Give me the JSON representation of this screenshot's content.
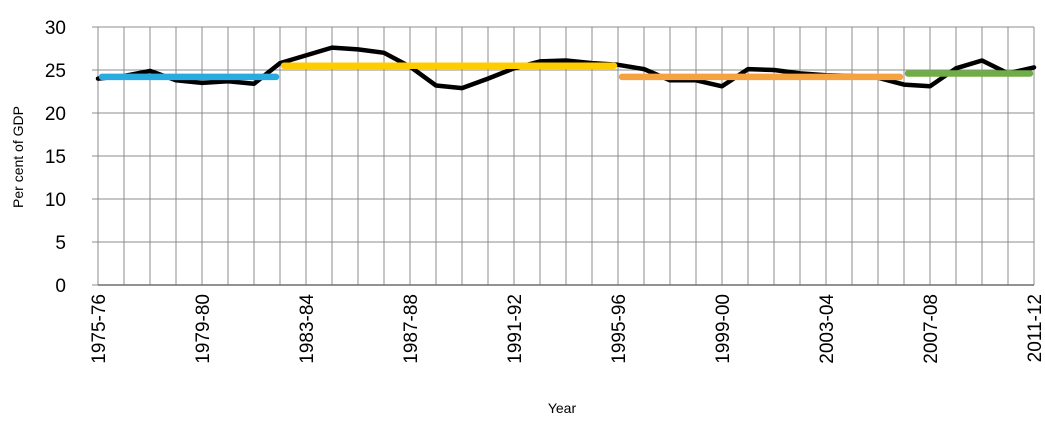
{
  "chart_data": {
    "type": "line",
    "title": "",
    "xlabel": "Year",
    "ylabel": "Per cent of GDP",
    "ylim": [
      0,
      30
    ],
    "yticks": [
      0,
      5,
      10,
      15,
      20,
      25,
      30
    ],
    "grid": true,
    "x": [
      "1975-76",
      "1976-77",
      "1977-78",
      "1978-79",
      "1979-80",
      "1980-81",
      "1981-82",
      "1982-83",
      "1983-84",
      "1984-85",
      "1985-86",
      "1986-87",
      "1987-88",
      "1988-89",
      "1989-90",
      "1990-91",
      "1991-92",
      "1992-93",
      "1993-94",
      "1994-95",
      "1995-96",
      "1996-97",
      "1997-98",
      "1998-99",
      "1999-00",
      "2000-01",
      "2001-02",
      "2002-03",
      "2003-04",
      "2004-05",
      "2005-06",
      "2006-07",
      "2007-08",
      "2008-09",
      "2009-10",
      "2010-11",
      "2011-12"
    ],
    "x_tick_labels": [
      "1975-76",
      "1979-80",
      "1983-84",
      "1987-88",
      "1991-92",
      "1995-96",
      "1999-00",
      "2003-04",
      "2007-08",
      "2011-12"
    ],
    "series": [
      {
        "name": "",
        "color": "#000000",
        "values": [
          24.0,
          24.3,
          24.9,
          23.8,
          23.5,
          23.7,
          23.4,
          25.8,
          26.7,
          27.6,
          27.4,
          27.0,
          25.4,
          23.2,
          22.9,
          24.0,
          25.2,
          26.0,
          26.1,
          25.8,
          25.6,
          25.1,
          23.8,
          23.8,
          23.1,
          25.1,
          25.0,
          24.6,
          24.4,
          24.3,
          24.1,
          23.3,
          23.1,
          25.2,
          26.1,
          24.6,
          25.3
        ]
      }
    ],
    "averages": [
      {
        "start": "1975-76",
        "end": "1982-83",
        "value": 24.2,
        "color": "#29abe2"
      },
      {
        "start": "1982-83",
        "end": "1995-96",
        "value": 25.5,
        "color": "#ffcc00"
      },
      {
        "start": "1995-96",
        "end": "2006-07",
        "value": 24.2,
        "color": "#f7a240"
      },
      {
        "start": "2006-07",
        "end": "2011-12",
        "value": 24.6,
        "color": "#70ad47"
      }
    ]
  }
}
